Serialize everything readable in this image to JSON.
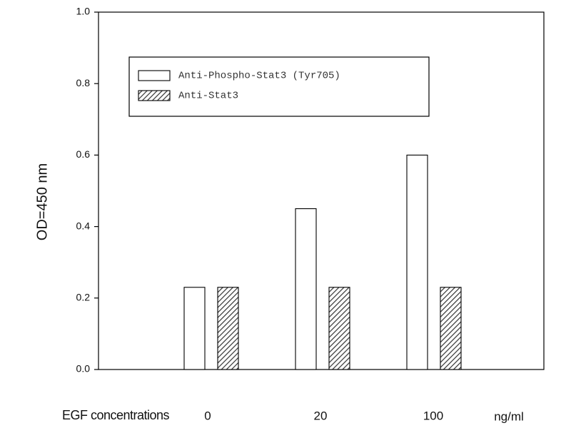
{
  "chart_data": {
    "type": "bar",
    "y_label": "OD=450 nm",
    "x_label": "EGF concentrations",
    "x_unit": "ng/ml",
    "categories": [
      "0",
      "20",
      "100"
    ],
    "series": [
      {
        "name": "Anti-Phospho-Stat3 (Tyr705)",
        "color": "#ffffff",
        "values": [
          0.23,
          0.45,
          0.6
        ]
      },
      {
        "name": "Anti-Stat3",
        "color": "#ffffff",
        "hatch": true,
        "values": [
          0.23,
          0.23,
          0.23
        ]
      }
    ],
    "ylim": [
      0,
      1
    ],
    "yticks": [
      {
        "value": 0,
        "label": "0.0"
      },
      0.2,
      0.4,
      0.6,
      0.8,
      {
        "value": 1,
        "label": "1.0"
      }
    ],
    "grid": false,
    "legend": "top-left"
  }
}
